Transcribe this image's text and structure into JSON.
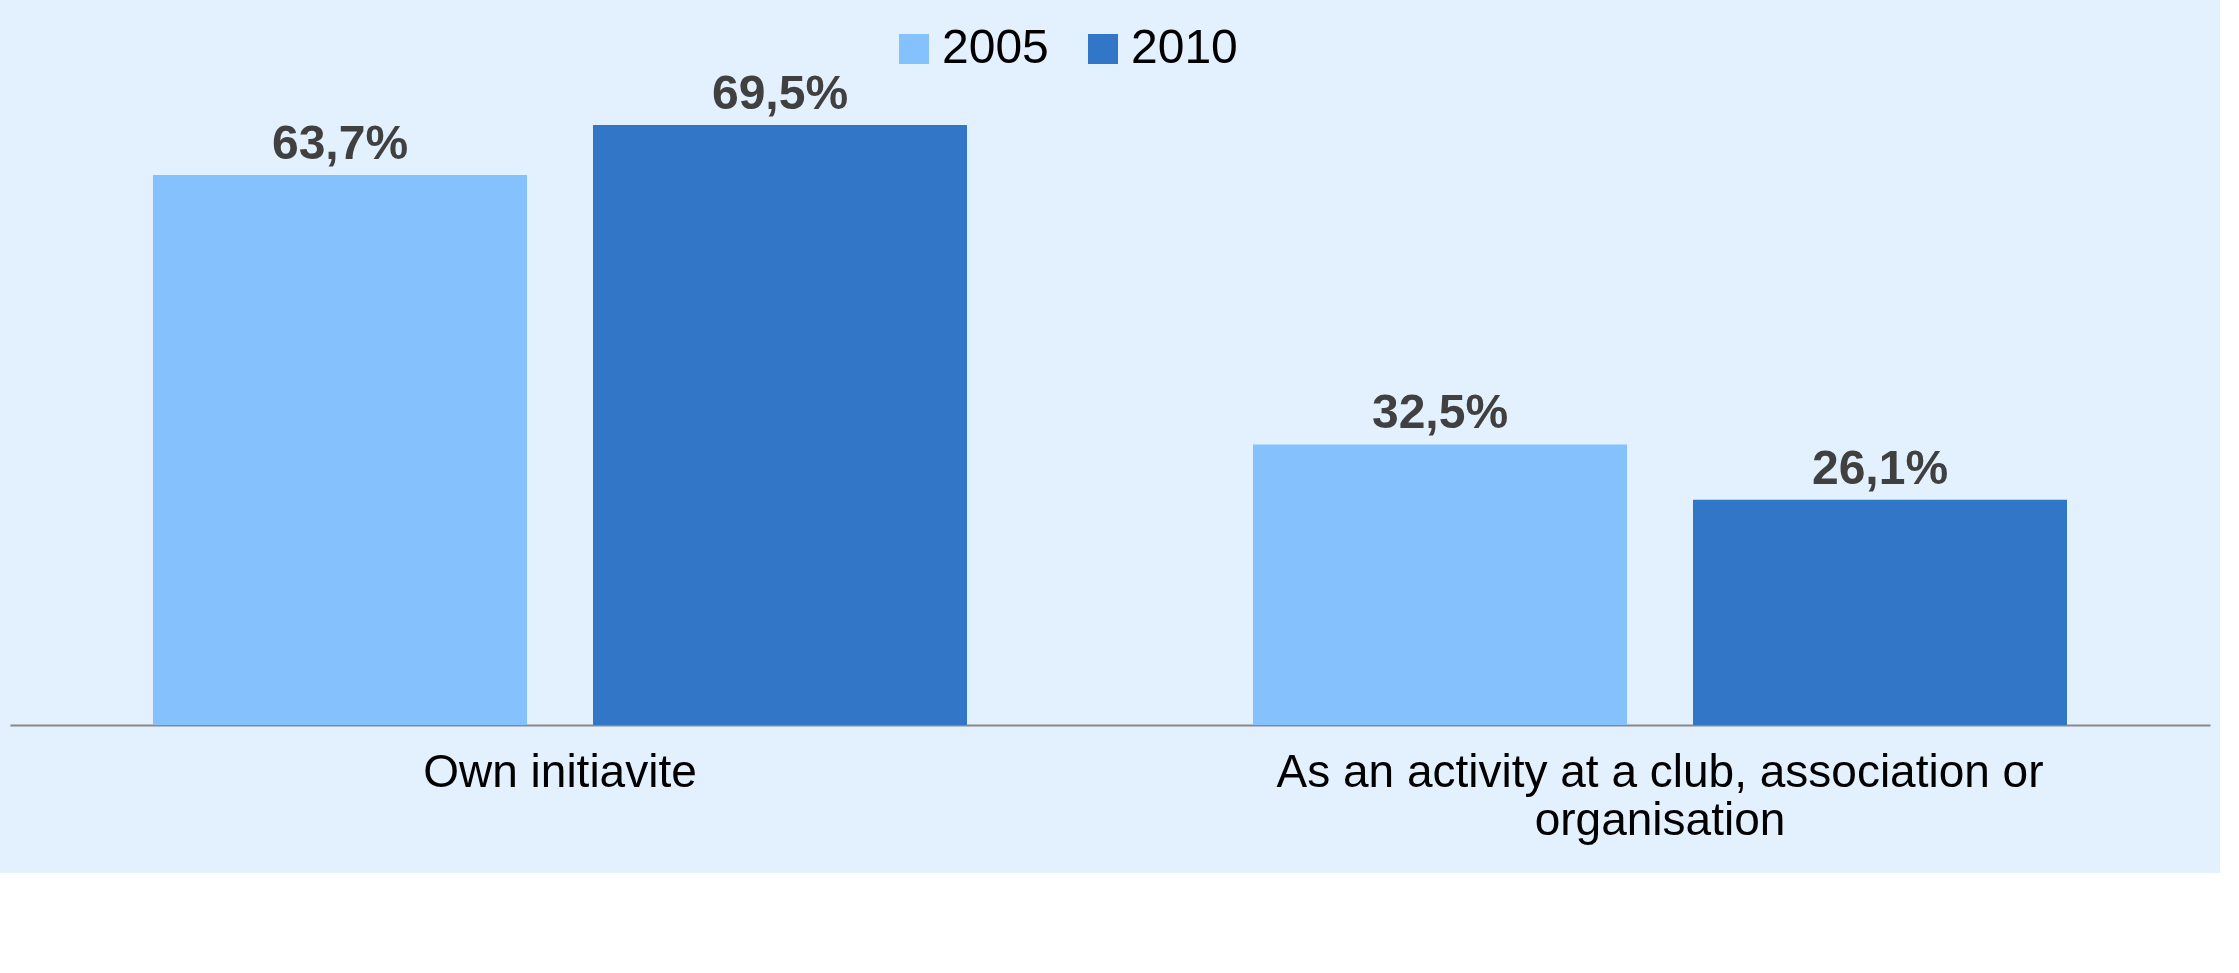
{
  "chart_data": {
    "type": "bar",
    "categories": [
      "Own initiavite",
      "As an activity at a club, association or organisation"
    ],
    "series": [
      {
        "name": "2005",
        "color": "#85c1fd",
        "values": [
          63.7,
          32.5
        ],
        "value_labels": [
          "63,7%",
          "32,5%"
        ]
      },
      {
        "name": "2010",
        "color": "#3276c8",
        "values": [
          69.5,
          26.1
        ],
        "value_labels": [
          "69,5%",
          "26,1%"
        ]
      }
    ],
    "tick_labels": "x",
    "grid": false,
    "legend": "top"
  }
}
